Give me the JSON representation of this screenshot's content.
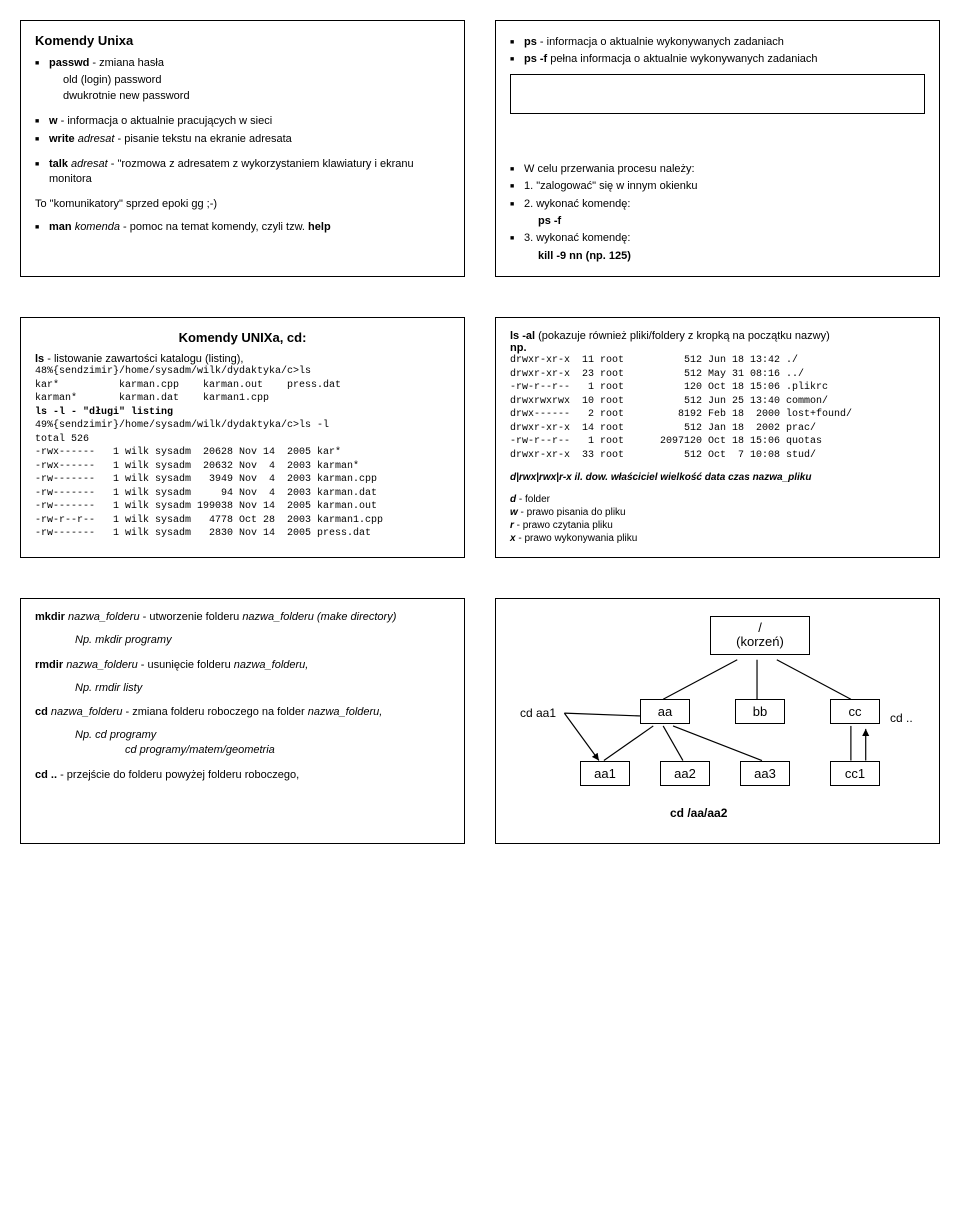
{
  "box1": {
    "title": "Komendy Unixa",
    "items": [
      "<b>passwd</b> - zmiana hasła",
      "old (login) password",
      "dwukrotnie new password"
    ],
    "items2": [
      "<b>w</b>   - informacja o aktualnie pracujących w sieci",
      "<b>write</b> <i>adresat</i> - pisanie tekstu na ekranie adresata"
    ],
    "items3": [
      "<b>talk</b> <i>adresat</i> - \"rozmowa z adresatem z wykorzystaniem klawiatury i ekranu monitora"
    ],
    "note": "To \"komunikatory\" sprzed epoki gg ;-)",
    "items4": [
      "<b>man</b> <i>komenda</i> - pomoc na temat komendy, czyli tzw. <b>help</b>"
    ]
  },
  "box2": {
    "items": [
      "<b>ps</b> - informacja o aktualnie wykonywanych zadaniach",
      "<b>ps -f</b> pełna informacja o aktualnie wykonywanych zadaniach"
    ],
    "items2": [
      "W celu przerwania procesu należy:",
      "1. \"zalogować\" się w innym okienku",
      "2. wykonać komendę:",
      "3. wykonać komendę:"
    ],
    "psf": "ps -f",
    "kill": "kill -9 nn (np. 125)"
  },
  "box3": {
    "title": "Komendy UNIXa, cd:",
    "intro": "<b>ls</b> - listowanie zawartości katalogu (listing),",
    "listing1": "48%{sendzimir}/home/sysadm/wilk/dydaktyka/c>ls\nkar*          karman.cpp    karman.out    press.dat\nkarman*       karman.dat    karman1.cpp",
    "lsl": "ls -l - \"długi\" listing",
    "listing2": "49%{sendzimir}/home/sysadm/wilk/dydaktyka/c>ls -l\ntotal 526\n-rwx------   1 wilk sysadm  20628 Nov 14  2005 kar*\n-rwx------   1 wilk sysadm  20632 Nov  4  2003 karman*\n-rw-------   1 wilk sysadm   3949 Nov  4  2003 karman.cpp\n-rw-------   1 wilk sysadm     94 Nov  4  2003 karman.dat\n-rw-------   1 wilk sysadm 199038 Nov 14  2005 karman.out\n-rw-r--r--   1 wilk sysadm   4778 Oct 28  2003 karman1.cpp\n-rw-------   1 wilk sysadm   2830 Nov 14  2005 press.dat"
  },
  "box4": {
    "intro": "<b>ls -al</b> (pokazuje również pliki/foldery z kropką na początku nazwy)",
    "np": "np.",
    "listing": "drwxr-xr-x  11 root          512 Jun 18 13:42 ./\ndrwxr-xr-x  23 root          512 May 31 08:16 ../\n-rw-r--r--   1 root          120 Oct 18 15:06 .plikrc\ndrwxrwxrwx  10 root          512 Jun 25 13:40 common/\ndrwx------   2 root         8192 Feb 18  2000 lost+found/\ndrwxr-xr-x  14 root          512 Jan 18  2002 prac/\n-rw-r--r--   1 root      2097120 Oct 18 15:06 quotas\ndrwxr-xr-x  33 root          512 Oct  7 10:08 stud/",
    "header": "d|rwx|rwx|r-x il. dow.  właściciel wielkość   data  czas    nazwa_pliku",
    "legend": [
      "<b><i>d</i></b> - folder",
      "<b><i>w</i></b> - prawo pisania do pliku",
      "<b><i>r</i></b> - prawo czytania pliku",
      "<b><i>x</i></b> - prawo wykonywania pliku"
    ]
  },
  "box5": {
    "items": [
      "<b>mkdir</b> <i>nazwa_folderu</i> - utworzenie folderu <i>nazwa_folderu (make directory)</i>",
      "<i>Np. mkdir programy</i>",
      "<b>rmdir</b> <i>nazwa_folderu</i> - usunięcie folderu <i>nazwa_folderu,</i>",
      "<i>Np. rmdir listy</i>",
      "<b>cd</b> <i>nazwa_folderu</i> - zmiana folderu roboczego na folder <i>nazwa_folderu,</i>",
      "<i>Np.     cd programy</i>",
      "<i>cd programy/matem/geometria</i>",
      "<b>cd ..</b> - przejście do folderu powyżej folderu roboczego,"
    ]
  },
  "box6": {
    "root": "/\n(korzeń)",
    "nodes": [
      "aa",
      "bb",
      "cc",
      "aa1",
      "aa2",
      "aa3",
      "cc1"
    ],
    "labels": {
      "cdaa1": "cd aa1",
      "cddot": "cd ..",
      "cdabs": "cd /aa/aa2"
    }
  }
}
